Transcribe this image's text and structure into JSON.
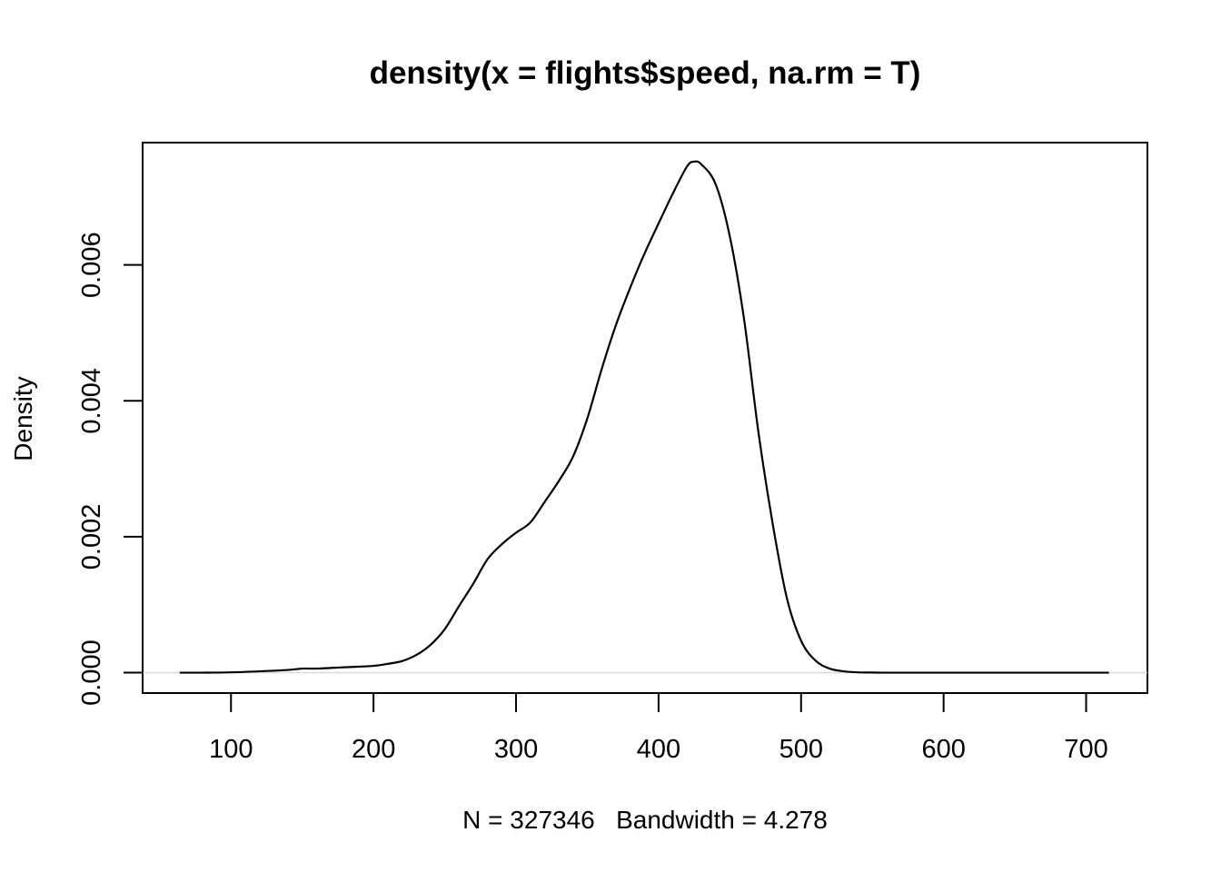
{
  "chart_data": {
    "type": "line",
    "title": "density(x = flights$speed, na.rm = T)",
    "xlabel": "N = 327346   Bandwidth = 4.278",
    "ylabel": "Density",
    "xlim": [
      38,
      743
    ],
    "ylim": [
      -0.0003,
      0.0078
    ],
    "x_ticks": [
      100,
      200,
      300,
      400,
      500,
      600,
      700
    ],
    "y_ticks": [
      0.0,
      0.002,
      0.004,
      0.006
    ],
    "x_tick_labels": [
      "100",
      "200",
      "300",
      "400",
      "500",
      "600",
      "700"
    ],
    "y_tick_labels": [
      "0.000",
      "0.002",
      "0.004",
      "0.006"
    ],
    "grid": false,
    "baseline": 0,
    "colors": {
      "line": "#000000",
      "baseline": "#d9d9d9"
    },
    "series": [
      {
        "x": [
          64,
          80,
          100,
          120,
          140,
          150,
          160,
          180,
          200,
          210,
          220,
          230,
          240,
          250,
          260,
          270,
          280,
          290,
          300,
          310,
          320,
          330,
          340,
          350,
          360,
          370,
          380,
          390,
          400,
          410,
          420,
          425,
          430,
          440,
          450,
          460,
          470,
          480,
          490,
          500,
          510,
          520,
          530,
          540,
          550,
          560,
          580,
          600,
          650,
          700,
          716
        ],
        "y": [
          0,
          0,
          5e-06,
          2e-05,
          4e-05,
          6e-05,
          6e-05,
          8e-05,
          0.0001,
          0.00013,
          0.00017,
          0.00026,
          0.00041,
          0.00064,
          0.00098,
          0.00131,
          0.00167,
          0.00189,
          0.00206,
          0.00221,
          0.00251,
          0.00282,
          0.00318,
          0.00374,
          0.00446,
          0.00511,
          0.00566,
          0.00616,
          0.00661,
          0.00705,
          0.00745,
          0.00752,
          0.00748,
          0.00719,
          0.00642,
          0.0052,
          0.00355,
          0.0022,
          0.0011,
          0.00047,
          0.00018,
          6e-05,
          2e-05,
          5e-06,
          2e-06,
          0,
          0,
          0,
          0,
          0,
          0
        ]
      }
    ]
  }
}
